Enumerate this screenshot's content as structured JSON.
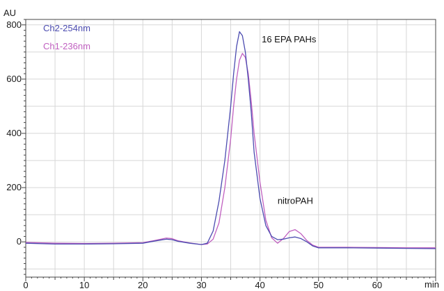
{
  "chart_data": {
    "type": "line",
    "title": "",
    "y_unit_label": "AU",
    "x_unit_label": "min",
    "xlim": [
      0,
      70
    ],
    "ylim": [
      -130,
      820
    ],
    "x_ticks": [
      0,
      10,
      20,
      30,
      40,
      50,
      60
    ],
    "y_ticks": [
      0,
      200,
      400,
      600,
      800
    ],
    "grid": true,
    "legend_position": "top-left",
    "series": [
      {
        "name": "Ch2-254nm",
        "color": "#4b4bb0",
        "x": [
          0,
          5,
          10,
          15,
          20,
          22,
          24,
          25,
          26,
          28,
          30,
          31,
          32,
          33,
          34,
          35,
          35.5,
          36,
          36.5,
          37,
          37.5,
          38,
          38.5,
          39,
          40,
          41,
          42,
          43,
          44,
          45,
          46,
          47,
          48,
          49,
          50,
          55,
          60,
          65,
          70
        ],
        "values": [
          -5,
          -8,
          -8,
          -7,
          -5,
          3,
          10,
          8,
          2,
          -5,
          -10,
          -5,
          40,
          150,
          300,
          500,
          620,
          720,
          775,
          760,
          700,
          600,
          480,
          330,
          160,
          60,
          20,
          8,
          10,
          15,
          18,
          12,
          0,
          -15,
          -22,
          -22,
          -23,
          -24,
          -25
        ]
      },
      {
        "name": "Ch1-236nm",
        "color": "#c060c0",
        "x": [
          0,
          5,
          10,
          15,
          20,
          22,
          24,
          25,
          26,
          28,
          30,
          31,
          32,
          33,
          34,
          35,
          35.5,
          36,
          36.5,
          37,
          37.5,
          38,
          38.5,
          39,
          40,
          41,
          42,
          43,
          44,
          45,
          46,
          47,
          48,
          49,
          50,
          55,
          60,
          65,
          70
        ],
        "values": [
          -2,
          -5,
          -6,
          -5,
          -3,
          5,
          14,
          12,
          4,
          -4,
          -10,
          -8,
          10,
          70,
          200,
          380,
          500,
          600,
          670,
          695,
          680,
          620,
          520,
          400,
          220,
          80,
          15,
          -5,
          12,
          38,
          45,
          30,
          5,
          -12,
          -20,
          -20,
          -21,
          -22,
          -22
        ]
      }
    ],
    "annotations": [
      {
        "text": "16 EPA PAHs",
        "x": 40.3,
        "y": 735
      },
      {
        "text": "nitroPAH",
        "x": 43,
        "y": 140
      }
    ]
  }
}
